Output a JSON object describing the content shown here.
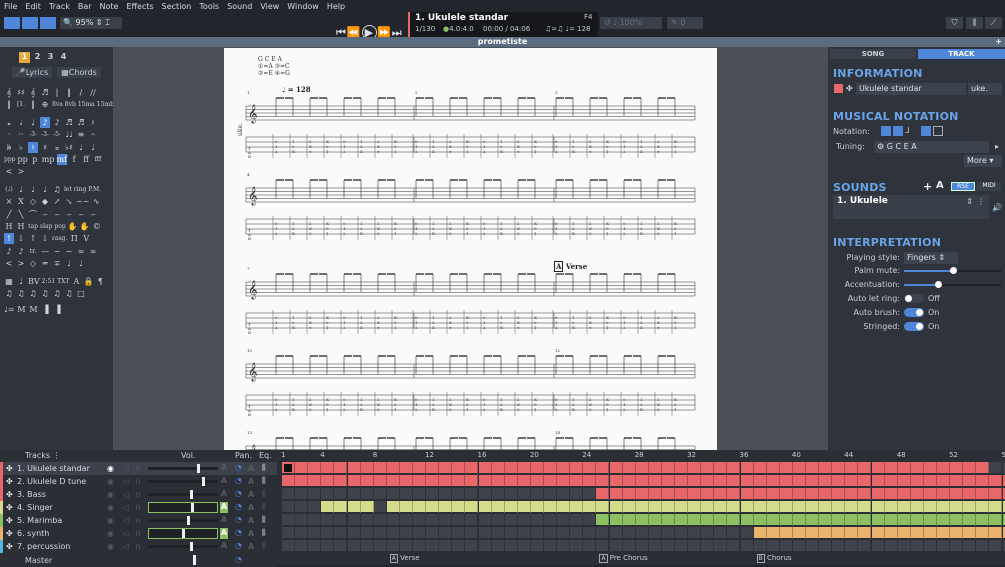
{
  "menu": [
    "File",
    "Edit",
    "Track",
    "Bar",
    "Note",
    "Effects",
    "Section",
    "Tools",
    "Sound",
    "View",
    "Window",
    "Help"
  ],
  "toolbar": {
    "zoom": "95%",
    "track_name": "1. Ukulele standar",
    "position": "1/130",
    "signature": "4.0:4.0",
    "time": "00:00 / 04:06",
    "tempo": "♫=♫ ♩= 128",
    "key": "F4",
    "speed": "100%",
    "pitch": "0"
  },
  "document_title": "prometiste",
  "palette": {
    "pages": [
      "1",
      "2",
      "3",
      "4"
    ],
    "lyrics": "Lyrics",
    "chords": "Chords",
    "rows": [
      [
        "𝄞",
        "♯♯",
        "𝄞",
        "♬",
        "|",
        "‖",
        "∕",
        "∕∕"
      ],
      [
        "‖",
        "[1.",
        "‖",
        "⊕",
        "8va",
        "8vb",
        "15ma",
        "15mb"
      ],
      [
        "𝅝",
        "𝅗𝅥",
        "♩",
        "♪",
        "♪",
        "♬",
        "♬",
        "𝄽"
      ],
      [
        "·",
        "··",
        "-3-",
        "-3-",
        "-5-",
        "♩♩",
        "≡",
        "𝄐"
      ],
      [
        "𝄫",
        "♭",
        "♮",
        "♯",
        "𝄪",
        "♭♯",
        "♩",
        "♩"
      ],
      [
        "ppp",
        "pp",
        "p",
        "mp",
        "mf",
        "f",
        "ff",
        "fff"
      ],
      [
        "<",
        ">"
      ],
      [
        "(♩)",
        "♩",
        "♩",
        "♩",
        "♫",
        "let ring",
        "P.M."
      ],
      [
        "×",
        "X",
        "◇",
        "◆",
        "↗",
        "↘",
        "~~",
        "∿"
      ],
      [
        "╱",
        "╲",
        "⌒",
        "‒",
        "‒",
        "‒",
        "‒",
        "‒"
      ],
      [
        "H",
        "H",
        "tap",
        "slap",
        "pop",
        "✋",
        "✋",
        "©"
      ],
      [
        "↑",
        "↓",
        "↑",
        "↓",
        "rasg.",
        "Π",
        "V"
      ],
      [
        "♪",
        "♪",
        "tr.",
        "—",
        "~",
        "~",
        "∞",
        "∞"
      ],
      [
        "<",
        ">",
        "◇",
        "═",
        "∓",
        "♩",
        "♩"
      ],
      [
        "▦",
        "♩",
        "BV",
        "2:51",
        "TXT",
        "A",
        "🔒",
        "¶"
      ],
      [
        "♫",
        "♫",
        "♫",
        "♫",
        "♫",
        "♫",
        "□"
      ],
      [
        "♩=",
        "M",
        "M",
        "▐",
        "▐"
      ]
    ]
  },
  "score": {
    "tuning_title": "G C E A",
    "tuning_lines": [
      "①=A  ③=C",
      "②=E  ④=G"
    ],
    "tempo": "♩ = 128",
    "instrument_label": "uke.",
    "section_marker": "A",
    "section_name": "Verse",
    "bar_numbers": [
      "1",
      "2",
      "3",
      "4",
      "7",
      "10",
      "12",
      "13",
      "14"
    ]
  },
  "panel": {
    "tabs": [
      "SONG",
      "TRACK"
    ],
    "active_tab": "TRACK",
    "information": {
      "title": "INFORMATION",
      "track_name": "Ukulele standar",
      "short_name": "uke.",
      "color": "#e8676b"
    },
    "notation": {
      "title": "MUSICAL NOTATION",
      "notation_label": "Notation:",
      "tuning_label": "Tuning:",
      "tuning": "G C E A",
      "more": "More ▾"
    },
    "sounds": {
      "title": "SOUNDS",
      "rse": "RSE",
      "midi": "MIDI",
      "sound_name": "1. Ukulele"
    },
    "interpretation": {
      "title": "INTERPRETATION",
      "playing_style_label": "Playing style:",
      "playing_style": "Fingers",
      "palm_mute_label": "Palm mute:",
      "palm_mute": 0.5,
      "accentuation_label": "Accentuation:",
      "accentuation": 0.35,
      "auto_let_ring_label": "Auto let ring:",
      "auto_let_ring": "Off",
      "auto_brush_label": "Auto brush:",
      "auto_brush": "On",
      "stringed_label": "Stringed:",
      "stringed": "On"
    }
  },
  "tracks": {
    "header": "Tracks",
    "vol": "Vol.",
    "pan": "Pan.",
    "eq": "Eq.",
    "master": "Master",
    "list": [
      {
        "name": "1. Ukulele standar",
        "color": "#e8676b",
        "vol": 0.72,
        "auto": false,
        "ranges": [
          [
            1,
            54
          ]
        ]
      },
      {
        "name": "2. Ukulele D tune",
        "color": "#e8676b",
        "vol": 0.8,
        "auto": false,
        "ranges": [
          [
            1,
            56
          ]
        ]
      },
      {
        "name": "3. Bass",
        "color": "#e8676b",
        "vol": 0.62,
        "auto": false,
        "ranges": [
          [
            25,
            56
          ]
        ]
      },
      {
        "name": "4. Singer",
        "color": "#d4db8a",
        "vol": 0.62,
        "auto": true,
        "ranges": [
          [
            4,
            7
          ],
          [
            9,
            56
          ]
        ]
      },
      {
        "name": "5. Marimba",
        "color": "#8cc063",
        "vol": 0.58,
        "auto": false,
        "ranges": [
          [
            25,
            56
          ]
        ]
      },
      {
        "name": "6. synth",
        "color": "#eab36e",
        "vol": 0.48,
        "auto": true,
        "ranges": [
          [
            37,
            56
          ]
        ]
      },
      {
        "name": "7. percussion",
        "color": "#4fb8e0",
        "vol": 0.62,
        "auto": false,
        "ranges": []
      }
    ],
    "bar_ticks": [
      "1",
      "4",
      "8",
      "12",
      "16",
      "20",
      "24",
      "28",
      "32",
      "36",
      "40",
      "44",
      "48",
      "52",
      "56"
    ],
    "sections": [
      {
        "marker": "A",
        "name": "Verse",
        "bar": 9
      },
      {
        "marker": "A",
        "name": "Pre Chorus",
        "bar": 25
      },
      {
        "marker": "B",
        "name": "Chorus",
        "bar": 37
      }
    ]
  }
}
